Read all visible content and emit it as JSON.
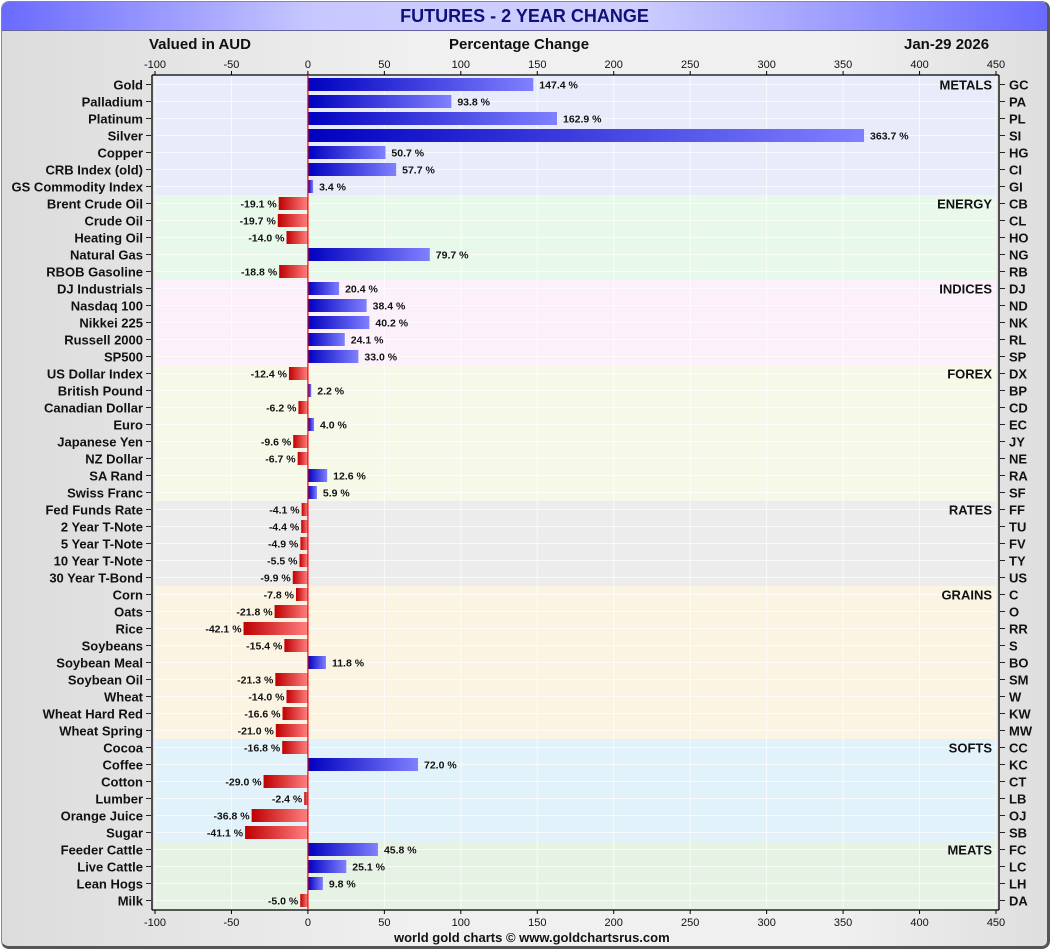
{
  "title": "FUTURES - 2 YEAR CHANGE",
  "header": {
    "left": "Valued in AUD",
    "center": "Percentage Change",
    "right": "Jan-29  2026"
  },
  "footer": "world gold charts © www.goldchartsrus.com",
  "colors": {
    "positive_dark": "#0000c0",
    "positive_light": "#8080ff",
    "negative_dark": "#c00000",
    "negative_light": "#ff8080",
    "zero_line": "#ff0000"
  },
  "chart_data": {
    "type": "bar",
    "orientation": "horizontal",
    "title": "FUTURES - 2 YEAR CHANGE",
    "xlabel": "Percentage Change",
    "xlim": [
      -100,
      450
    ],
    "xticks": [
      -100,
      -50,
      0,
      50,
      100,
      150,
      200,
      250,
      300,
      350,
      400,
      450
    ],
    "grid": true,
    "value_suffix": " %",
    "groups": [
      {
        "name": "METALS",
        "bg": "#e8ecfa",
        "items": [
          {
            "label": "Gold",
            "code": "GC",
            "value": 147.4
          },
          {
            "label": "Palladium",
            "code": "PA",
            "value": 93.8
          },
          {
            "label": "Platinum",
            "code": "PL",
            "value": 162.9
          },
          {
            "label": "Silver",
            "code": "SI",
            "value": 363.7
          },
          {
            "label": "Copper",
            "code": "HG",
            "value": 50.7
          },
          {
            "label": "CRB Index (old)",
            "code": "CI",
            "value": 57.7
          },
          {
            "label": "GS Commodity Index",
            "code": "GI",
            "value": 3.4
          }
        ]
      },
      {
        "name": "ENERGY",
        "bg": "#e8f8ea",
        "items": [
          {
            "label": "Brent Crude Oil",
            "code": "CB",
            "value": -19.1
          },
          {
            "label": "Crude Oil",
            "code": "CL",
            "value": -19.7
          },
          {
            "label": "Heating Oil",
            "code": "HO",
            "value": -14.0
          },
          {
            "label": "Natural Gas",
            "code": "NG",
            "value": 79.7
          },
          {
            "label": "RBOB Gasoline",
            "code": "RB",
            "value": -18.8
          }
        ]
      },
      {
        "name": "INDICES",
        "bg": "#fcf0fa",
        "items": [
          {
            "label": "DJ Industrials",
            "code": "DJ",
            "value": 20.4
          },
          {
            "label": "Nasdaq 100",
            "code": "ND",
            "value": 38.4
          },
          {
            "label": "Nikkei 225",
            "code": "NK",
            "value": 40.2
          },
          {
            "label": "Russell 2000",
            "code": "RL",
            "value": 24.1
          },
          {
            "label": "SP500",
            "code": "SP",
            "value": 33.0
          }
        ]
      },
      {
        "name": "FOREX",
        "bg": "#f6f9e8",
        "items": [
          {
            "label": "US Dollar Index",
            "code": "DX",
            "value": -12.4
          },
          {
            "label": "British Pound",
            "code": "BP",
            "value": 2.2
          },
          {
            "label": "Canadian Dollar",
            "code": "CD",
            "value": -6.2
          },
          {
            "label": "Euro",
            "code": "EC",
            "value": 4.0
          },
          {
            "label": "Japanese Yen",
            "code": "JY",
            "value": -9.6
          },
          {
            "label": "NZ Dollar",
            "code": "NE",
            "value": -6.7
          },
          {
            "label": "SA Rand",
            "code": "RA",
            "value": 12.6
          },
          {
            "label": "Swiss Franc",
            "code": "SF",
            "value": 5.9
          }
        ]
      },
      {
        "name": "RATES",
        "bg": "#ececec",
        "items": [
          {
            "label": "Fed Funds Rate",
            "code": "FF",
            "value": -4.1
          },
          {
            "label": "2 Year T-Note",
            "code": "TU",
            "value": -4.4
          },
          {
            "label": "5 Year T-Note",
            "code": "FV",
            "value": -4.9
          },
          {
            "label": "10 Year T-Note",
            "code": "TY",
            "value": -5.5
          },
          {
            "label": "30 Year T-Bond",
            "code": "US",
            "value": -9.9
          }
        ]
      },
      {
        "name": "GRAINS",
        "bg": "#fcf4e2",
        "items": [
          {
            "label": "Corn",
            "code": "C",
            "value": -7.8
          },
          {
            "label": "Oats",
            "code": "O",
            "value": -21.8
          },
          {
            "label": "Rice",
            "code": "RR",
            "value": -42.1
          },
          {
            "label": "Soybeans",
            "code": "S",
            "value": -15.4
          },
          {
            "label": "Soybean Meal",
            "code": "BO",
            "value": 11.8
          },
          {
            "label": "Soybean Oil",
            "code": "SM",
            "value": -21.3
          },
          {
            "label": "Wheat",
            "code": "W",
            "value": -14.0
          },
          {
            "label": "Wheat Hard Red",
            "code": "KW",
            "value": -16.6
          },
          {
            "label": "Wheat Spring",
            "code": "MW",
            "value": -21.0
          }
        ]
      },
      {
        "name": "SOFTS",
        "bg": "#e2f2fa",
        "items": [
          {
            "label": "Cocoa",
            "code": "CC",
            "value": -16.8
          },
          {
            "label": "Coffee",
            "code": "KC",
            "value": 72.0
          },
          {
            "label": "Cotton",
            "code": "CT",
            "value": -29.0
          },
          {
            "label": "Lumber",
            "code": "LB",
            "value": -2.4
          },
          {
            "label": "Orange Juice",
            "code": "OJ",
            "value": -36.8
          },
          {
            "label": "Sugar",
            "code": "SB",
            "value": -41.1
          }
        ]
      },
      {
        "name": "MEATS",
        "bg": "#e6f2e4",
        "items": [
          {
            "label": "Feeder Cattle",
            "code": "FC",
            "value": 45.8
          },
          {
            "label": "Live Cattle",
            "code": "LC",
            "value": 25.1
          },
          {
            "label": "Lean Hogs",
            "code": "LH",
            "value": 9.8
          },
          {
            "label": "Milk",
            "code": "DA",
            "value": -5.0
          }
        ]
      }
    ]
  }
}
